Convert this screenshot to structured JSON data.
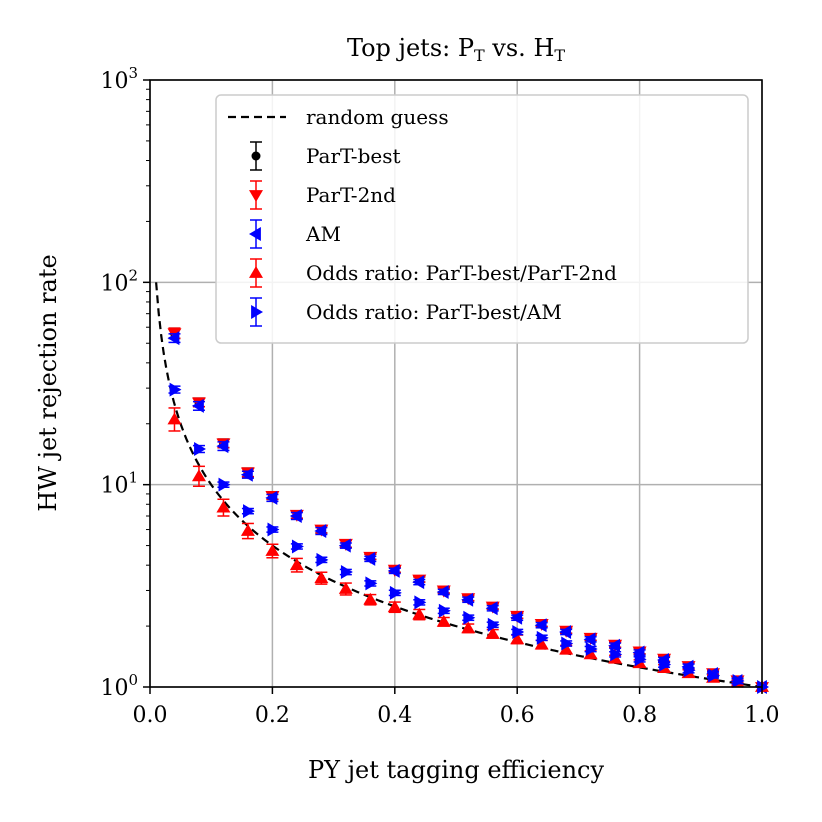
{
  "chart_data": {
    "type": "scatter",
    "title": "Top jets: P_T vs. H_T",
    "title_parts": {
      "prefix": "Top jets: ",
      "p": "P",
      "p_sub": "T",
      "mid": " vs. ",
      "h": "H",
      "h_sub": "T"
    },
    "xlabel": "PY jet tagging efficiency",
    "ylabel": "HW jet rejection rate",
    "xscale": "linear",
    "yscale": "log",
    "xlim": [
      0.0,
      1.0
    ],
    "ylim": [
      1,
      1000
    ],
    "grid": true,
    "legend_position": "top-right",
    "x_ticks": [
      "0.0",
      "0.2",
      "0.4",
      "0.6",
      "0.8",
      "1.0"
    ],
    "y_ticks": [
      {
        "value": 1,
        "base": "10",
        "exp": "0"
      },
      {
        "value": 10,
        "base": "10",
        "exp": "1"
      },
      {
        "value": 100,
        "base": "10",
        "exp": "2"
      },
      {
        "value": 1000,
        "base": "10",
        "exp": "3"
      }
    ],
    "reference": {
      "name": "random guess",
      "style": "dashed",
      "color": "#000000",
      "formula": "y = 1/x",
      "x_start": 0.01,
      "x_end": 1.0
    },
    "x": [
      0.04,
      0.08,
      0.12,
      0.16,
      0.2,
      0.24,
      0.28,
      0.32,
      0.36,
      0.4,
      0.44,
      0.48,
      0.52,
      0.56,
      0.6,
      0.64,
      0.68,
      0.72,
      0.76,
      0.8,
      0.84,
      0.88,
      0.92,
      0.96,
      1.0
    ],
    "series": [
      {
        "name": "ParT-best",
        "marker": "circle",
        "color": "#000000",
        "values": [
          56.0,
          25.5,
          16.0,
          11.5,
          8.8,
          7.1,
          6.0,
          5.1,
          4.4,
          3.8,
          3.4,
          3.0,
          2.75,
          2.5,
          2.25,
          2.05,
          1.9,
          1.75,
          1.62,
          1.5,
          1.38,
          1.27,
          1.17,
          1.08,
          1.0
        ],
        "errors_frac": [
          0.06,
          0.05,
          0.05,
          0.05,
          0.04,
          0.04,
          0.04,
          0.04,
          0.03,
          0.03,
          0.03,
          0.03,
          0.03,
          0.03,
          0.03,
          0.03,
          0.03,
          0.03,
          0.03,
          0.03,
          0.03,
          0.03,
          0.03,
          0.03,
          0.0
        ]
      },
      {
        "name": "ParT-2nd",
        "marker": "triangle-down",
        "color": "#ff0000",
        "values": [
          56.0,
          25.5,
          16.0,
          11.5,
          8.8,
          7.1,
          6.0,
          5.1,
          4.4,
          3.8,
          3.4,
          3.0,
          2.75,
          2.5,
          2.25,
          2.05,
          1.9,
          1.75,
          1.62,
          1.5,
          1.38,
          1.27,
          1.17,
          1.08,
          1.0
        ],
        "errors_frac": [
          0.06,
          0.05,
          0.05,
          0.05,
          0.04,
          0.04,
          0.04,
          0.04,
          0.03,
          0.03,
          0.03,
          0.03,
          0.03,
          0.03,
          0.03,
          0.03,
          0.03,
          0.03,
          0.03,
          0.03,
          0.03,
          0.03,
          0.03,
          0.03,
          0.0
        ]
      },
      {
        "name": "AM",
        "marker": "triangle-left",
        "color": "#0000ff",
        "values": [
          53.0,
          24.5,
          15.5,
          11.2,
          8.6,
          7.0,
          5.9,
          5.0,
          4.3,
          3.75,
          3.3,
          2.95,
          2.7,
          2.45,
          2.2,
          2.02,
          1.87,
          1.72,
          1.6,
          1.48,
          1.36,
          1.26,
          1.16,
          1.07,
          1.0
        ],
        "errors_frac": [
          0.05,
          0.05,
          0.05,
          0.04,
          0.04,
          0.04,
          0.04,
          0.03,
          0.03,
          0.03,
          0.03,
          0.03,
          0.03,
          0.03,
          0.03,
          0.03,
          0.03,
          0.03,
          0.03,
          0.03,
          0.03,
          0.03,
          0.03,
          0.03,
          0.0
        ]
      },
      {
        "name": "Odds ratio: ParT-best/ParT-2nd",
        "marker": "triangle-up",
        "color": "#ff0000",
        "values": [
          21.0,
          11.0,
          7.7,
          5.9,
          4.7,
          4.0,
          3.45,
          3.05,
          2.7,
          2.48,
          2.28,
          2.1,
          1.95,
          1.83,
          1.72,
          1.62,
          1.53,
          1.45,
          1.38,
          1.31,
          1.24,
          1.17,
          1.11,
          1.05,
          1.0
        ],
        "errors_frac": [
          0.14,
          0.12,
          0.1,
          0.09,
          0.08,
          0.08,
          0.07,
          0.07,
          0.06,
          0.06,
          0.06,
          0.05,
          0.05,
          0.05,
          0.05,
          0.05,
          0.05,
          0.04,
          0.04,
          0.04,
          0.04,
          0.04,
          0.04,
          0.03,
          0.0
        ]
      },
      {
        "name": "Odds ratio: ParT-best/AM",
        "marker": "triangle-right",
        "color": "#0000ff",
        "values": [
          29.5,
          15.0,
          10.0,
          7.4,
          6.0,
          4.95,
          4.25,
          3.7,
          3.25,
          2.92,
          2.62,
          2.38,
          2.2,
          2.03,
          1.87,
          1.75,
          1.64,
          1.54,
          1.45,
          1.37,
          1.29,
          1.21,
          1.14,
          1.07,
          1.0
        ],
        "errors_frac": [
          0.04,
          0.04,
          0.03,
          0.03,
          0.03,
          0.03,
          0.03,
          0.03,
          0.03,
          0.03,
          0.03,
          0.03,
          0.03,
          0.03,
          0.03,
          0.03,
          0.03,
          0.03,
          0.03,
          0.03,
          0.03,
          0.03,
          0.03,
          0.03,
          0.0
        ]
      }
    ]
  }
}
